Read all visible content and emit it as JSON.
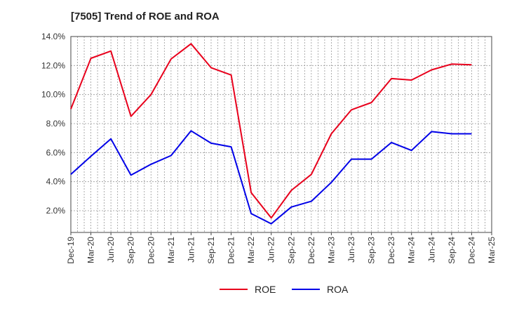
{
  "chart_data": {
    "type": "line",
    "title": "[7505]  Trend of ROE and ROA",
    "xlabel": "",
    "ylabel": "",
    "ylim": [
      0.5,
      14.0
    ],
    "yticks": [
      2.0,
      4.0,
      6.0,
      8.0,
      10.0,
      12.0,
      14.0
    ],
    "ytick_labels": [
      "2.0%",
      "4.0%",
      "6.0%",
      "8.0%",
      "10.0%",
      "12.0%",
      "14.0%"
    ],
    "categories": [
      "Dec-19",
      "Mar-20",
      "Jun-20",
      "Sep-20",
      "Dec-20",
      "Mar-21",
      "Jun-21",
      "Sep-21",
      "Dec-21",
      "Mar-22",
      "Jun-22",
      "Sep-22",
      "Dec-22",
      "Mar-23",
      "Jun-23",
      "Sep-23",
      "Dec-23",
      "Mar-24",
      "Jun-24",
      "Sep-24",
      "Dec-24",
      "Mar-25"
    ],
    "grid": true,
    "legend_position": "bottom-center",
    "series": [
      {
        "name": "ROE",
        "color": "#e8001c",
        "values": [
          9.0,
          12.5,
          13.0,
          8.5,
          10.0,
          12.45,
          13.5,
          11.85,
          11.35,
          3.25,
          1.5,
          3.4,
          4.5,
          7.3,
          8.95,
          9.45,
          11.1,
          11.0,
          11.7,
          12.1,
          12.05,
          null
        ]
      },
      {
        "name": "ROA",
        "color": "#0000e8",
        "values": [
          4.5,
          5.75,
          6.95,
          4.45,
          5.2,
          5.8,
          7.5,
          6.65,
          6.4,
          1.8,
          1.1,
          2.25,
          2.65,
          3.95,
          5.55,
          5.55,
          6.7,
          6.15,
          7.45,
          7.3,
          7.3,
          null
        ]
      }
    ]
  }
}
